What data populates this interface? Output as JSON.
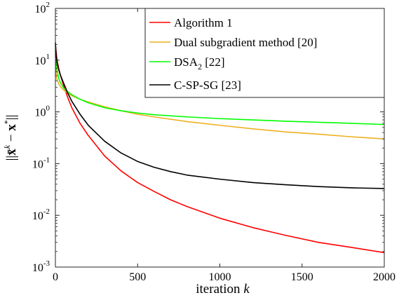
{
  "chart_data": {
    "type": "line",
    "xlabel": "iteration k",
    "ylabel": "||x̄^k − x*||",
    "xscale": "linear",
    "yscale": "log",
    "xlim": [
      0,
      2000
    ],
    "ylim": [
      0.001,
      100
    ],
    "x_ticks": [
      0,
      500,
      1000,
      1500,
      2000
    ],
    "y_ticks": [
      {
        "value": 0.001,
        "base": "10",
        "exp": "-3"
      },
      {
        "value": 0.01,
        "base": "10",
        "exp": "-2"
      },
      {
        "value": 0.1,
        "base": "10",
        "exp": "-1"
      },
      {
        "value": 1,
        "base": "10",
        "exp": "0"
      },
      {
        "value": 10,
        "base": "10",
        "exp": "1"
      },
      {
        "value": 100,
        "base": "10",
        "exp": "2"
      }
    ],
    "grid": false,
    "legend_position": "top-right",
    "series": [
      {
        "name": "Algorithm 1",
        "color": "#ff0000",
        "x": [
          0,
          5,
          10,
          20,
          30,
          50,
          75,
          100,
          150,
          200,
          300,
          400,
          500,
          600,
          700,
          800,
          1000,
          1200,
          1400,
          1600,
          1800,
          2000
        ],
        "y": [
          20,
          14,
          10,
          7,
          5.2,
          3.2,
          1.9,
          1.2,
          0.6,
          0.35,
          0.14,
          0.072,
          0.043,
          0.029,
          0.02,
          0.0148,
          0.0088,
          0.0058,
          0.0041,
          0.003,
          0.0024,
          0.0019
        ]
      },
      {
        "name": "Dual subgradient method [20]",
        "color": "#edb120",
        "x": [
          0,
          5,
          10,
          20,
          30,
          50,
          75,
          100,
          150,
          200,
          300,
          400,
          500,
          600,
          800,
          1000,
          1200,
          1400,
          1600,
          1800,
          2000
        ],
        "y": [
          16,
          5.5,
          4.2,
          3.5,
          3.1,
          2.65,
          2.3,
          2.05,
          1.75,
          1.55,
          1.25,
          1.05,
          0.9,
          0.8,
          0.65,
          0.55,
          0.47,
          0.41,
          0.37,
          0.33,
          0.3
        ]
      },
      {
        "name": "DSA",
        "name_sub": "2",
        "name_suffix": " [22]",
        "color": "#00ff00",
        "x": [
          0,
          5,
          10,
          20,
          30,
          50,
          75,
          100,
          150,
          200,
          300,
          400,
          500,
          600,
          800,
          1000,
          1200,
          1400,
          1600,
          1800,
          2000
        ],
        "y": [
          19,
          9,
          6.5,
          4.5,
          3.7,
          2.9,
          2.45,
          2.15,
          1.75,
          1.5,
          1.2,
          1.05,
          0.95,
          0.88,
          0.8,
          0.74,
          0.7,
          0.66,
          0.63,
          0.6,
          0.57
        ]
      },
      {
        "name": "C-SP-SG [23]",
        "color": "#000000",
        "x": [
          0,
          5,
          10,
          20,
          30,
          50,
          75,
          100,
          150,
          200,
          300,
          400,
          500,
          600,
          700,
          800,
          1000,
          1200,
          1400,
          1600,
          1800,
          2000
        ],
        "y": [
          22,
          12,
          9,
          6.6,
          5.2,
          3.6,
          2.3,
          1.6,
          0.9,
          0.55,
          0.27,
          0.16,
          0.11,
          0.085,
          0.07,
          0.06,
          0.05,
          0.043,
          0.039,
          0.036,
          0.034,
          0.033
        ]
      }
    ]
  }
}
